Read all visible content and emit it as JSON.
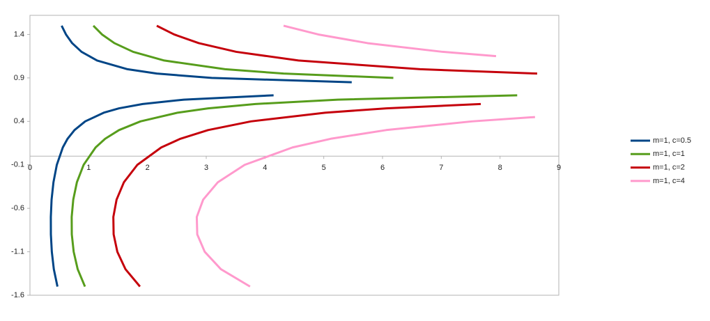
{
  "chart_data": {
    "type": "scatter",
    "lines": true,
    "xlim": [
      0,
      9
    ],
    "xticks": [
      0,
      1,
      2,
      3,
      4,
      5,
      6,
      7,
      8,
      9
    ],
    "ylim": [
      -1.6,
      1.62
    ],
    "yticks": [
      -1.6,
      -1.1,
      -0.6,
      -0.1,
      0.4,
      0.9,
      1.4
    ],
    "legend": "right",
    "series": [
      {
        "name": "m=1, c=0.5",
        "color": "#004586",
        "x": [
          0.468,
          0.406,
          0.372,
          0.356,
          0.355,
          0.368,
          0.4,
          0.457,
          0.559,
          0.64,
          0.758,
          0.94,
          1.256,
          1.516,
          1.918,
          2.619,
          4.146,
          null,
          5.476,
          3.092,
          2.158,
          1.66,
          1.143,
          0.878,
          0.718,
          0.613,
          0.539
        ],
        "y": [
          -1.5,
          -1.3,
          -1.1,
          -0.9,
          -0.7,
          -0.5,
          -0.3,
          -0.1,
          0.1,
          0.2,
          0.3,
          0.4,
          0.5,
          0.55,
          0.6,
          0.65,
          0.7,
          null,
          0.85,
          0.9,
          0.95,
          1.0,
          1.1,
          1.2,
          1.3,
          1.4,
          1.5
        ]
      },
      {
        "name": "m=1, c=1",
        "color": "#579d1c",
        "x": [
          0.936,
          0.812,
          0.744,
          0.712,
          0.71,
          0.737,
          0.799,
          0.913,
          1.117,
          1.28,
          1.516,
          1.881,
          2.511,
          3.032,
          3.836,
          5.238,
          8.292,
          null,
          6.184,
          4.316,
          3.32,
          2.285,
          1.756,
          1.437,
          1.226,
          1.079
        ],
        "y": [
          -1.5,
          -1.3,
          -1.1,
          -0.9,
          -0.7,
          -0.5,
          -0.3,
          -0.1,
          0.1,
          0.2,
          0.3,
          0.4,
          0.5,
          0.55,
          0.6,
          0.65,
          0.7,
          null,
          0.9,
          0.95,
          1.0,
          1.1,
          1.2,
          1.3,
          1.4,
          1.5
        ]
      },
      {
        "name": "m=1, c=2",
        "color": "#c5000b",
        "x": [
          1.872,
          1.625,
          1.487,
          1.424,
          1.419,
          1.474,
          1.599,
          1.827,
          2.234,
          2.56,
          3.031,
          3.762,
          5.023,
          6.064,
          7.672,
          null,
          8.632,
          6.64,
          4.57,
          3.511,
          2.873,
          2.453,
          2.158
        ],
        "y": [
          -1.5,
          -1.3,
          -1.1,
          -0.9,
          -0.7,
          -0.5,
          -0.3,
          -0.1,
          0.1,
          0.2,
          0.3,
          0.4,
          0.5,
          0.55,
          0.6,
          null,
          0.95,
          1.0,
          1.1,
          1.2,
          1.3,
          1.4,
          1.5
        ]
      },
      {
        "name": "m=1, c=4",
        "color": "#ff99cc",
        "x": [
          3.745,
          3.249,
          2.974,
          2.847,
          2.839,
          2.948,
          3.198,
          3.654,
          4.468,
          5.119,
          6.062,
          7.523,
          8.595,
          null,
          7.932,
          7.022,
          5.746,
          4.906,
          4.316
        ],
        "y": [
          -1.5,
          -1.3,
          -1.1,
          -0.9,
          -0.7,
          -0.5,
          -0.3,
          -0.1,
          0.1,
          0.2,
          0.3,
          0.4,
          0.45,
          null,
          1.15,
          1.2,
          1.3,
          1.4,
          1.5
        ]
      }
    ]
  }
}
